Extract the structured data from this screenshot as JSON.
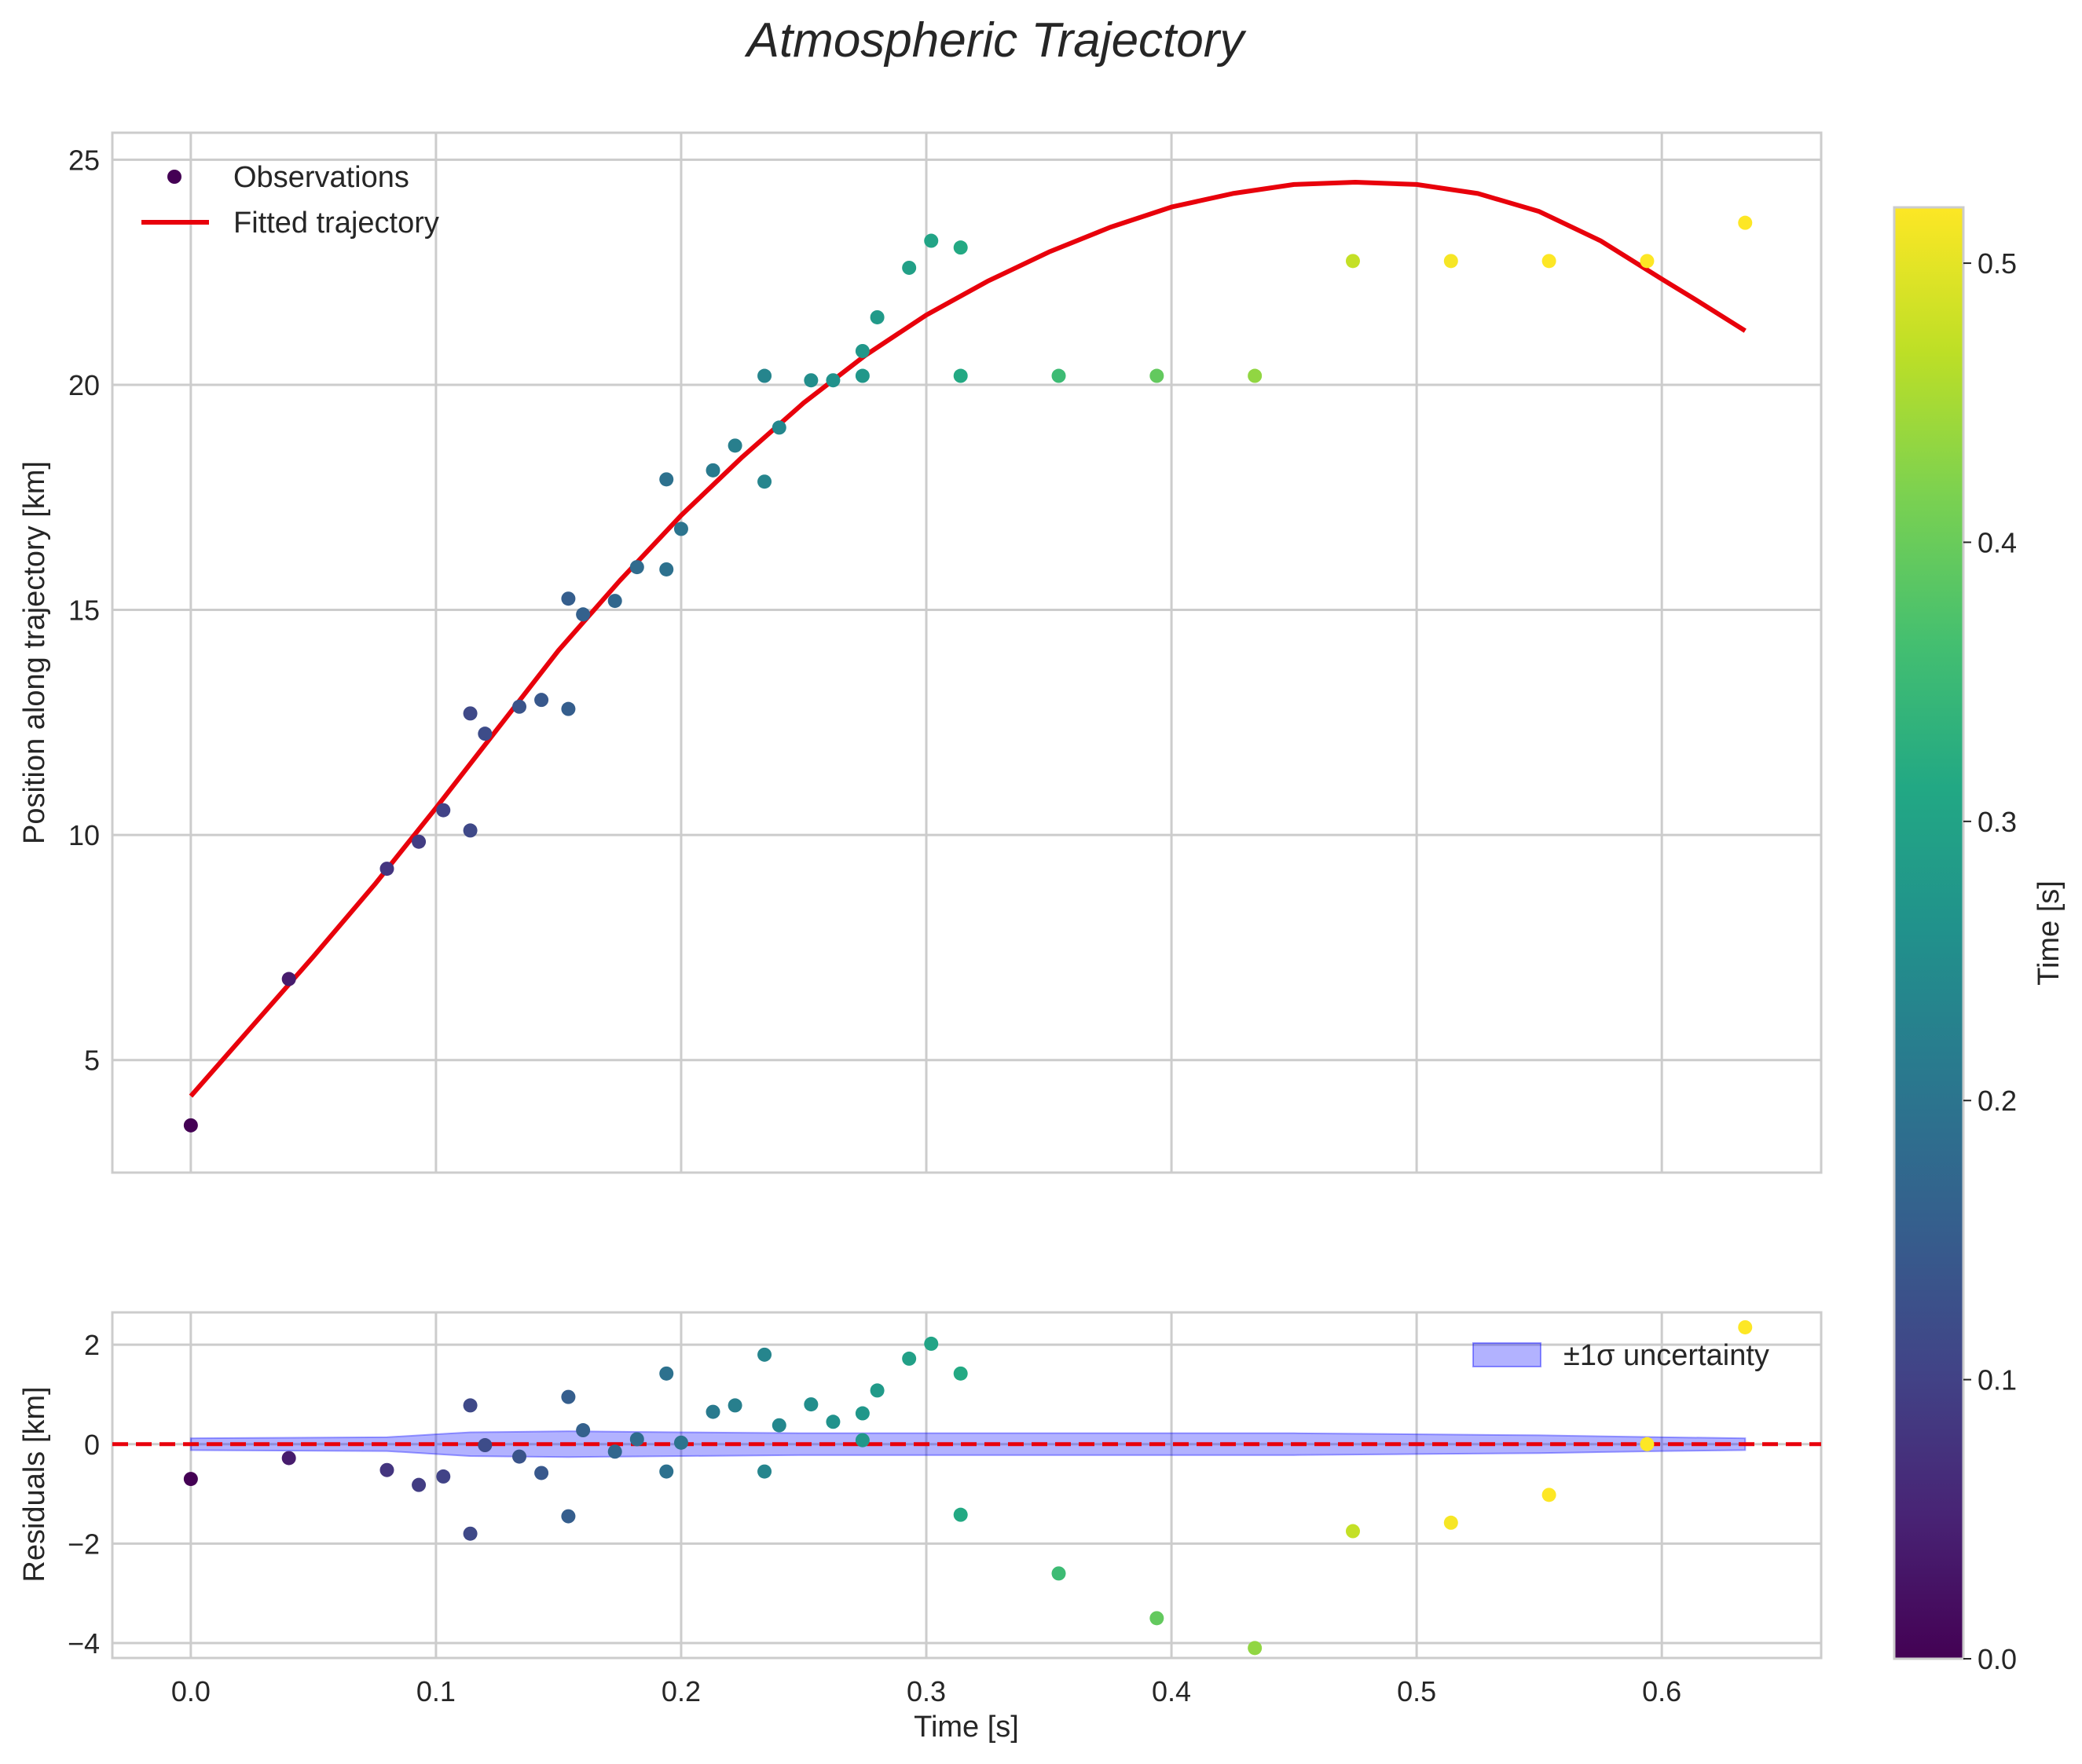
{
  "chart_data": {
    "title": "Atmospheric Trajectory",
    "type": "scatter",
    "colorbar": {
      "label": "Time [s]",
      "range": [
        0.0,
        0.52
      ],
      "ticks": [
        0.0,
        0.1,
        0.2,
        0.3,
        0.4,
        0.5
      ],
      "tick_labels": [
        "0.0",
        "0.1",
        "0.2",
        "0.3",
        "0.4",
        "0.5"
      ],
      "colormap": "viridis"
    },
    "panels": [
      {
        "id": "trajectory",
        "ylabel": "Position along trajectory [km]",
        "xlabel": "",
        "xlim": [
          -0.032,
          0.665
        ],
        "ylim": [
          2.5,
          25.6
        ],
        "yticks": [
          5,
          10,
          15,
          20,
          25
        ],
        "ytick_labels": [
          "5",
          "10",
          "15",
          "20",
          "25"
        ],
        "xticks": [
          0.0,
          0.1,
          0.2,
          0.3,
          0.4,
          0.5,
          0.6
        ],
        "grid": true,
        "legend": {
          "placement": "top-left",
          "entries": [
            {
              "label": "Observations",
              "kind": "marker"
            },
            {
              "label": "Fitted trajectory",
              "kind": "line",
              "color": "#e8000b"
            }
          ]
        },
        "series": [
          {
            "name": "Observations",
            "type": "scatter",
            "points": [
              [
                0.0,
                3.55
              ],
              [
                0.04,
                6.8
              ],
              [
                0.08,
                9.25
              ],
              [
                0.093,
                9.85
              ],
              [
                0.103,
                10.55
              ],
              [
                0.114,
                10.1
              ],
              [
                0.114,
                12.7
              ],
              [
                0.12,
                12.25
              ],
              [
                0.134,
                12.85
              ],
              [
                0.143,
                13.0
              ],
              [
                0.154,
                12.8
              ],
              [
                0.154,
                15.25
              ],
              [
                0.16,
                14.9
              ],
              [
                0.173,
                15.2
              ],
              [
                0.182,
                15.95
              ],
              [
                0.194,
                15.9
              ],
              [
                0.194,
                17.9
              ],
              [
                0.2,
                16.8
              ],
              [
                0.213,
                18.1
              ],
              [
                0.222,
                18.65
              ],
              [
                0.234,
                17.85
              ],
              [
                0.234,
                20.2
              ],
              [
                0.24,
                19.05
              ],
              [
                0.253,
                20.1
              ],
              [
                0.262,
                20.1
              ],
              [
                0.274,
                20.2
              ],
              [
                0.274,
                20.75
              ],
              [
                0.28,
                21.5
              ],
              [
                0.293,
                22.6
              ],
              [
                0.302,
                23.2
              ],
              [
                0.314,
                23.05
              ],
              [
                0.314,
                20.2
              ],
              [
                0.354,
                20.2
              ],
              [
                0.394,
                20.2
              ],
              [
                0.434,
                20.2
              ],
              [
                0.474,
                22.75
              ],
              [
                0.514,
                22.75
              ],
              [
                0.554,
                22.75
              ],
              [
                0.594,
                22.75
              ],
              [
                0.634,
                23.6
              ]
            ]
          },
          {
            "name": "Fitted trajectory",
            "type": "line",
            "color": "#e8000b",
            "x": [
              0.0,
              0.025,
              0.05,
              0.075,
              0.1,
              0.125,
              0.15,
              0.175,
              0.2,
              0.225,
              0.25,
              0.275,
              0.3,
              0.325,
              0.35,
              0.375,
              0.4,
              0.425,
              0.45,
              0.475,
              0.5,
              0.525,
              0.55,
              0.575,
              0.6,
              0.615,
              0.634
            ],
            "y": [
              4.2,
              5.75,
              7.3,
              8.9,
              10.6,
              12.35,
              14.1,
              15.65,
              17.1,
              18.4,
              19.6,
              20.65,
              21.55,
              22.3,
              22.95,
              23.5,
              23.95,
              24.25,
              24.45,
              24.5,
              24.45,
              24.25,
              23.85,
              23.2,
              22.35,
              21.85,
              21.2
            ]
          }
        ]
      },
      {
        "id": "residuals",
        "ylabel": "Residuals [km]",
        "xlabel": "Time [s]",
        "xlim": [
          -0.032,
          0.665
        ],
        "ylim": [
          -4.3,
          2.65
        ],
        "yticks": [
          -4,
          -2,
          0,
          2
        ],
        "ytick_labels": [
          "−4",
          "−2",
          "0",
          "2"
        ],
        "xticks": [
          0.0,
          0.1,
          0.2,
          0.3,
          0.4,
          0.5,
          0.6
        ],
        "xtick_labels": [
          "0.0",
          "0.1",
          "0.2",
          "0.3",
          "0.4",
          "0.5",
          "0.6"
        ],
        "grid": true,
        "zero_line": {
          "y": 0,
          "style": "dashed",
          "color": "#e8000b"
        },
        "legend": {
          "placement": "top-right",
          "entries": [
            {
              "label": "±1σ uncertainty",
              "kind": "band",
              "color": "#0000ff"
            }
          ]
        },
        "series": [
          {
            "name": "Residuals",
            "type": "scatter",
            "points": [
              [
                0.0,
                -0.7
              ],
              [
                0.04,
                -0.28
              ],
              [
                0.08,
                -0.52
              ],
              [
                0.093,
                -0.82
              ],
              [
                0.103,
                -0.65
              ],
              [
                0.114,
                -1.8
              ],
              [
                0.114,
                0.78
              ],
              [
                0.12,
                -0.02
              ],
              [
                0.134,
                -0.25
              ],
              [
                0.143,
                -0.58
              ],
              [
                0.154,
                -1.45
              ],
              [
                0.154,
                0.95
              ],
              [
                0.16,
                0.28
              ],
              [
                0.173,
                -0.15
              ],
              [
                0.182,
                0.1
              ],
              [
                0.194,
                -0.55
              ],
              [
                0.194,
                1.42
              ],
              [
                0.2,
                0.03
              ],
              [
                0.213,
                0.65
              ],
              [
                0.222,
                0.78
              ],
              [
                0.234,
                -0.55
              ],
              [
                0.234,
                1.8
              ],
              [
                0.24,
                0.38
              ],
              [
                0.253,
                0.8
              ],
              [
                0.262,
                0.45
              ],
              [
                0.274,
                0.08
              ],
              [
                0.274,
                0.62
              ],
              [
                0.28,
                1.08
              ],
              [
                0.293,
                1.72
              ],
              [
                0.302,
                2.02
              ],
              [
                0.314,
                1.42
              ],
              [
                0.314,
                -1.42
              ],
              [
                0.354,
                -2.6
              ],
              [
                0.394,
                -3.5
              ],
              [
                0.434,
                -4.1
              ],
              [
                0.474,
                -1.75
              ],
              [
                0.514,
                -1.58
              ],
              [
                0.554,
                -1.02
              ],
              [
                0.594,
                0.0
              ],
              [
                0.634,
                2.35
              ]
            ]
          },
          {
            "name": "±1σ uncertainty",
            "type": "band",
            "color": "#0000ff",
            "x": [
              0.0,
              0.08,
              0.1,
              0.114,
              0.154,
              0.2,
              0.25,
              0.3,
              0.35,
              0.4,
              0.45,
              0.5,
              0.55,
              0.6,
              0.634
            ],
            "sigma": [
              0.12,
              0.14,
              0.2,
              0.24,
              0.26,
              0.24,
              0.22,
              0.22,
              0.22,
              0.22,
              0.22,
              0.2,
              0.18,
              0.14,
              0.12
            ]
          }
        ]
      }
    ]
  }
}
